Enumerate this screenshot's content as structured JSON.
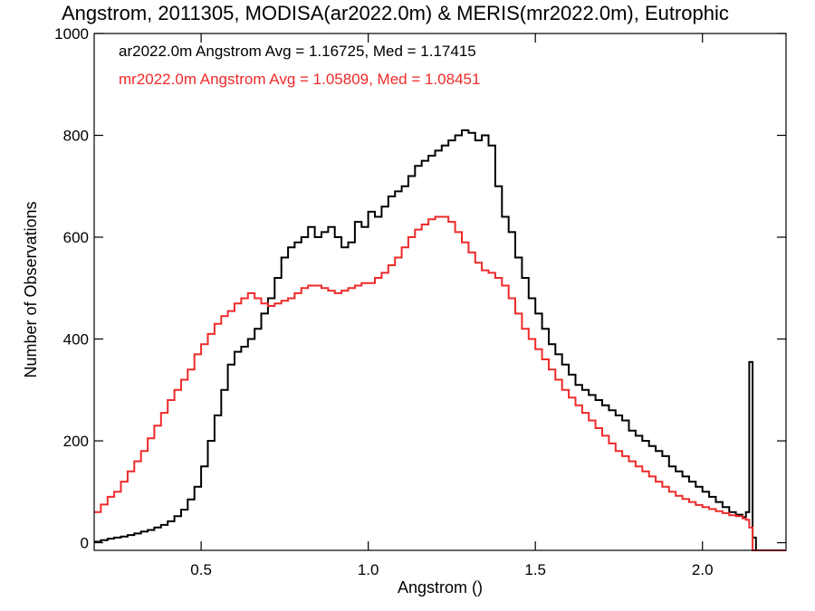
{
  "chart_data": {
    "type": "line",
    "title": "Angstrom, 2011305, MODISA(ar2022.0m) & MERIS(mr2022.0m), Eutrophic",
    "xlabel": "Angstrom ()",
    "ylabel": "Number of Observations",
    "xlim": [
      0.18,
      2.25
    ],
    "ylim": [
      -15,
      1000
    ],
    "xticks": [
      0.5,
      1.0,
      1.5,
      2.0
    ],
    "xtick_labels": [
      "0.5",
      "1.0",
      "1.5",
      "2.0"
    ],
    "yticks": [
      0,
      200,
      400,
      600,
      800,
      1000
    ],
    "ytick_labels": [
      "0",
      "200",
      "400",
      "600",
      "800",
      "1000"
    ],
    "grid": false,
    "legend_position": "top-left",
    "series": [
      {
        "name": "ar2022.0m",
        "legend_label": "ar2022.0m Angstrom Avg = 1.16725, Med = 1.17415",
        "color": "#000000",
        "x": [
          0.18,
          0.2,
          0.22,
          0.24,
          0.26,
          0.28,
          0.3,
          0.32,
          0.34,
          0.36,
          0.38,
          0.4,
          0.42,
          0.44,
          0.46,
          0.48,
          0.5,
          0.52,
          0.54,
          0.56,
          0.58,
          0.6,
          0.62,
          0.64,
          0.66,
          0.68,
          0.7,
          0.72,
          0.74,
          0.76,
          0.78,
          0.8,
          0.82,
          0.84,
          0.86,
          0.88,
          0.9,
          0.92,
          0.94,
          0.96,
          0.98,
          1.0,
          1.02,
          1.04,
          1.06,
          1.08,
          1.1,
          1.12,
          1.14,
          1.16,
          1.18,
          1.2,
          1.22,
          1.24,
          1.26,
          1.28,
          1.3,
          1.32,
          1.34,
          1.36,
          1.38,
          1.4,
          1.42,
          1.44,
          1.46,
          1.48,
          1.5,
          1.52,
          1.54,
          1.56,
          1.58,
          1.6,
          1.62,
          1.64,
          1.66,
          1.68,
          1.7,
          1.72,
          1.74,
          1.76,
          1.78,
          1.8,
          1.82,
          1.84,
          1.86,
          1.88,
          1.9,
          1.92,
          1.94,
          1.96,
          1.98,
          2.0,
          2.02,
          2.04,
          2.06,
          2.08,
          2.1,
          2.12,
          2.13,
          2.14,
          2.15,
          2.16,
          2.18,
          2.2,
          2.22,
          2.24
        ],
        "y": [
          2,
          5,
          8,
          10,
          12,
          15,
          18,
          22,
          25,
          30,
          35,
          42,
          52,
          65,
          85,
          110,
          150,
          200,
          250,
          300,
          350,
          375,
          385,
          400,
          420,
          450,
          480,
          520,
          560,
          580,
          590,
          600,
          620,
          600,
          610,
          620,
          600,
          580,
          590,
          630,
          620,
          650,
          640,
          660,
          680,
          690,
          700,
          720,
          740,
          750,
          760,
          770,
          780,
          790,
          800,
          810,
          805,
          790,
          800,
          780,
          700,
          640,
          610,
          560,
          520,
          480,
          450,
          420,
          390,
          370,
          350,
          330,
          310,
          300,
          290,
          280,
          270,
          260,
          250,
          240,
          220,
          210,
          200,
          190,
          180,
          170,
          150,
          140,
          130,
          120,
          110,
          100,
          90,
          80,
          70,
          60,
          55,
          50,
          60,
          355,
          10,
          -15,
          -15,
          -15,
          -15,
          -15
        ]
      },
      {
        "name": "mr2022.0m",
        "legend_label": "mr2022.0m Angstrom Avg = 1.05809, Med = 1.08451",
        "color": "#ee2a2a",
        "x": [
          0.18,
          0.2,
          0.22,
          0.24,
          0.26,
          0.28,
          0.3,
          0.32,
          0.34,
          0.36,
          0.38,
          0.4,
          0.42,
          0.44,
          0.46,
          0.48,
          0.5,
          0.52,
          0.54,
          0.56,
          0.58,
          0.6,
          0.62,
          0.64,
          0.66,
          0.68,
          0.7,
          0.72,
          0.74,
          0.76,
          0.78,
          0.8,
          0.82,
          0.84,
          0.86,
          0.88,
          0.9,
          0.92,
          0.94,
          0.96,
          0.98,
          1.0,
          1.02,
          1.04,
          1.06,
          1.08,
          1.1,
          1.12,
          1.14,
          1.16,
          1.18,
          1.2,
          1.22,
          1.24,
          1.26,
          1.28,
          1.3,
          1.32,
          1.34,
          1.36,
          1.38,
          1.4,
          1.42,
          1.44,
          1.46,
          1.48,
          1.5,
          1.52,
          1.54,
          1.56,
          1.58,
          1.6,
          1.62,
          1.64,
          1.66,
          1.68,
          1.7,
          1.72,
          1.74,
          1.76,
          1.78,
          1.8,
          1.82,
          1.84,
          1.86,
          1.88,
          1.9,
          1.92,
          1.94,
          1.96,
          1.98,
          2.0,
          2.02,
          2.04,
          2.06,
          2.08,
          2.1,
          2.12,
          2.13,
          2.14,
          2.15,
          2.16,
          2.18,
          2.2,
          2.22,
          2.24
        ],
        "y": [
          60,
          75,
          90,
          100,
          120,
          140,
          160,
          180,
          205,
          230,
          255,
          280,
          300,
          320,
          340,
          370,
          390,
          410,
          430,
          445,
          455,
          470,
          480,
          490,
          480,
          470,
          465,
          470,
          475,
          480,
          490,
          500,
          505,
          505,
          500,
          495,
          490,
          495,
          500,
          505,
          510,
          510,
          520,
          530,
          545,
          560,
          580,
          600,
          615,
          625,
          635,
          640,
          640,
          630,
          610,
          590,
          570,
          550,
          535,
          530,
          520,
          505,
          480,
          450,
          420,
          400,
          380,
          360,
          340,
          320,
          300,
          285,
          270,
          255,
          240,
          225,
          210,
          195,
          180,
          170,
          160,
          150,
          140,
          130,
          120,
          110,
          100,
          92,
          86,
          80,
          74,
          70,
          66,
          62,
          58,
          54,
          52,
          48,
          45,
          30,
          -15,
          -15,
          -15,
          -15,
          -15,
          -15
        ]
      }
    ]
  }
}
